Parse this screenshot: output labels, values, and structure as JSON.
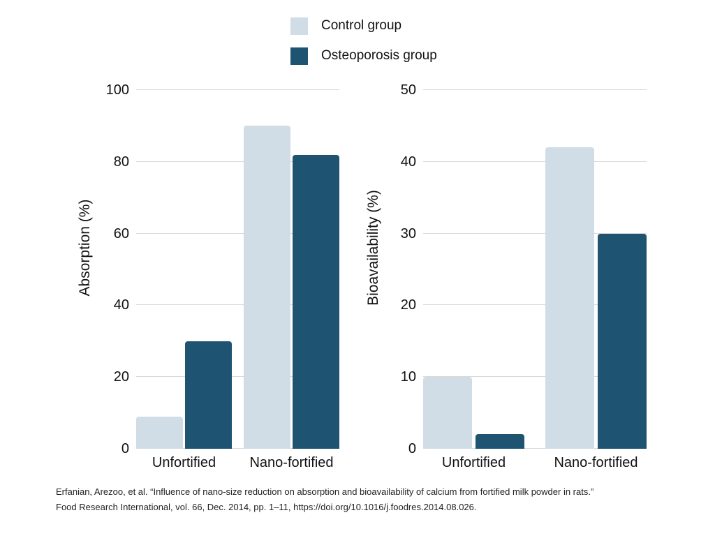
{
  "legend": {
    "items": [
      {
        "label": "Control group",
        "color": "#d1dde6"
      },
      {
        "label": "Osteoporosis group",
        "color": "#1f5372"
      }
    ]
  },
  "chart_data": [
    {
      "type": "bar",
      "title": "",
      "ylabel": "Absorption (%)",
      "xlabel": "",
      "categories": [
        "Unfortified",
        "Nano-fortified"
      ],
      "series": [
        {
          "name": "Control group",
          "color": "#d1dde6",
          "values": [
            9,
            90
          ]
        },
        {
          "name": "Osteoporosis group",
          "color": "#1f5372",
          "values": [
            30,
            82
          ]
        }
      ],
      "ylim": [
        0,
        100
      ],
      "yticks": [
        0,
        20,
        40,
        60,
        80,
        100
      ],
      "grid": true,
      "legend_position": "top-center"
    },
    {
      "type": "bar",
      "title": "",
      "ylabel": "Bioavailability (%)",
      "xlabel": "",
      "categories": [
        "Unfortified",
        "Nano-fortified"
      ],
      "series": [
        {
          "name": "Control group",
          "color": "#d1dde6",
          "values": [
            10,
            42
          ]
        },
        {
          "name": "Osteoporosis group",
          "color": "#1f5372",
          "values": [
            2,
            30
          ]
        }
      ],
      "ylim": [
        0,
        50
      ],
      "yticks": [
        0,
        10,
        20,
        30,
        40,
        50
      ],
      "grid": true,
      "legend_position": "top-center"
    }
  ],
  "citation": {
    "line1": "Erfanian, Arezoo, et al. “Influence of nano-size reduction on absorption and bioavailability of calcium from fortified milk powder in rats.”",
    "line2": "Food Research International, vol. 66, Dec. 2014, pp. 1–11, https://doi.org/10.1016/j.foodres.2014.08.026."
  },
  "colors": {
    "control": "#d1dde6",
    "osteoporosis": "#1f5372",
    "gridline": "#d9d9d9",
    "text": "#111111"
  }
}
